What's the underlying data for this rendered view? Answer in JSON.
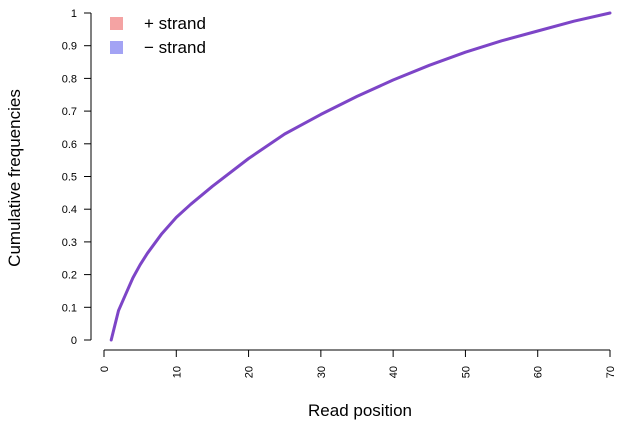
{
  "chart_data": {
    "type": "line",
    "xlabel": "Read position",
    "ylabel": "Cumulative frequencies",
    "xlim": [
      0,
      70
    ],
    "ylim": [
      0,
      1
    ],
    "xticks": [
      "0",
      "10",
      "20",
      "30",
      "40",
      "50",
      "60",
      "70"
    ],
    "yticks": [
      "0",
      "0.1",
      "0.2",
      "0.3",
      "0.4",
      "0.5",
      "0.6",
      "0.7",
      "0.8",
      "0.9",
      "1"
    ],
    "grid": false,
    "legend_position": "top-left",
    "legend": [
      {
        "label": "+ strand",
        "color": "#f4a3a3"
      },
      {
        "label": "− strand",
        "color": "#a3a3f4"
      }
    ],
    "line_color": "#7d45c7",
    "series": [
      {
        "x": [
          1,
          2,
          3,
          4,
          5,
          6,
          8,
          10,
          12,
          15,
          20,
          25,
          30,
          35,
          40,
          45,
          50,
          55,
          60,
          65,
          70
        ],
        "y": [
          0.0,
          0.09,
          0.14,
          0.19,
          0.23,
          0.265,
          0.325,
          0.375,
          0.415,
          0.47,
          0.555,
          0.63,
          0.69,
          0.745,
          0.795,
          0.84,
          0.88,
          0.915,
          0.945,
          0.975,
          1.0
        ]
      }
    ]
  }
}
